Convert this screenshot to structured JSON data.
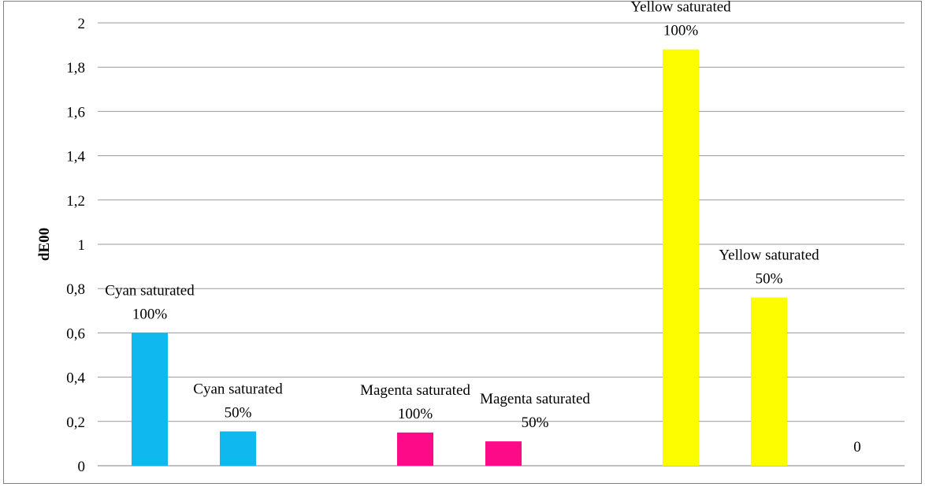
{
  "chart_data": {
    "type": "bar",
    "title": "",
    "xlabel": "",
    "ylabel": "dE00",
    "ylim": [
      0,
      2
    ],
    "y_ticks": [
      "0",
      "0,2",
      "0,4",
      "0,6",
      "0,8",
      "1",
      "1,2",
      "1,4",
      "1,6",
      "1,8",
      "2"
    ],
    "grid": true,
    "bars": [
      {
        "label_line1": "Cyan saturated",
        "label_line2": "100%",
        "value": 0.6,
        "color": "#0fb8ef"
      },
      {
        "label_line1": "Cyan saturated",
        "label_line2": "50%",
        "value": 0.155,
        "color": "#0fb8ef"
      },
      {
        "label_line1": "Magenta saturated",
        "label_line2": "100%",
        "value": 0.15,
        "color": "#fc0a87"
      },
      {
        "label_line1": "Magenta saturated",
        "label_line2": "50%",
        "value": 0.11,
        "color": "#fc0a87"
      },
      {
        "label_line1": "Yellow saturated",
        "label_line2": "100%",
        "value": 1.88,
        "color": "#fdfd00"
      },
      {
        "label_line1": "Yellow saturated",
        "label_line2": "50%",
        "value": 0.76,
        "color": "#fdfd00"
      },
      {
        "label_line1": "0",
        "label_line2": "",
        "value": 0,
        "color": "#fdfd00"
      }
    ]
  }
}
